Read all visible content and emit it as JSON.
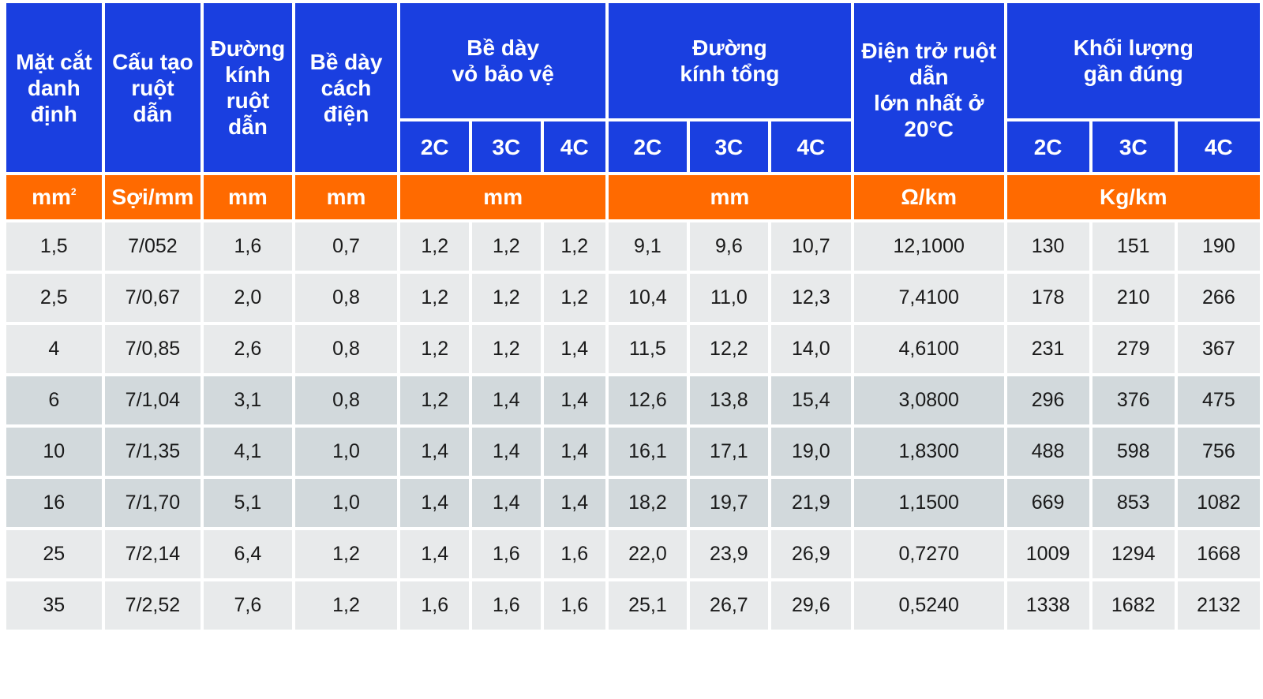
{
  "headers": {
    "cross_section": "Mặt cắt\ndanh\nđịnh",
    "conductor_structure": "Cấu tạo\nruột\ndẫn",
    "conductor_diameter": "Đường\nkính\nruột\ndẫn",
    "insulation_thickness": "Bề dày\ncách\nđiện",
    "sheath_thickness": "Bề dày\nvỏ bảo vệ",
    "overall_diameter": "Đường\nkính tổng",
    "max_resistance": "Điện trở ruột\ndẫn\nlớn nhất ở\n20°C",
    "approx_weight": "Khối lượng\ngần đúng",
    "sub": [
      "2C",
      "3C",
      "4C"
    ]
  },
  "units": {
    "cross_section": "mm",
    "cross_section_sup": "2",
    "conductor_structure": "Sợi/mm",
    "conductor_diameter": "mm",
    "insulation_thickness": "mm",
    "sheath_thickness": "mm",
    "overall_diameter": "mm",
    "max_resistance": "Ω/km",
    "approx_weight": "Kg/km"
  },
  "rows": [
    [
      "1,5",
      "7/052",
      "1,6",
      "0,7",
      "1,2",
      "1,2",
      "1,2",
      "9,1",
      "9,6",
      "10,7",
      "12,1000",
      "130",
      "151",
      "190"
    ],
    [
      "2,5",
      "7/0,67",
      "2,0",
      "0,8",
      "1,2",
      "1,2",
      "1,2",
      "10,4",
      "11,0",
      "12,3",
      "7,4100",
      "178",
      "210",
      "266"
    ],
    [
      "4",
      "7/0,85",
      "2,6",
      "0,8",
      "1,2",
      "1,2",
      "1,4",
      "11,5",
      "12,2",
      "14,0",
      "4,6100",
      "231",
      "279",
      "367"
    ],
    [
      "6",
      "7/1,04",
      "3,1",
      "0,8",
      "1,2",
      "1,4",
      "1,4",
      "12,6",
      "13,8",
      "15,4",
      "3,0800",
      "296",
      "376",
      "475"
    ],
    [
      "10",
      "7/1,35",
      "4,1",
      "1,0",
      "1,4",
      "1,4",
      "1,4",
      "16,1",
      "17,1",
      "19,0",
      "1,8300",
      "488",
      "598",
      "756"
    ],
    [
      "16",
      "7/1,70",
      "5,1",
      "1,0",
      "1,4",
      "1,4",
      "1,4",
      "18,2",
      "19,7",
      "21,9",
      "1,1500",
      "669",
      "853",
      "1082"
    ],
    [
      "25",
      "7/2,14",
      "6,4",
      "1,2",
      "1,4",
      "1,6",
      "1,6",
      "22,0",
      "23,9",
      "26,9",
      "0,7270",
      "1009",
      "1294",
      "1668"
    ],
    [
      "35",
      "7/2,52",
      "7,6",
      "1,2",
      "1,6",
      "1,6",
      "1,6",
      "25,1",
      "26,7",
      "29,6",
      "0,5240",
      "1338",
      "1682",
      "2132"
    ]
  ],
  "colors": {
    "header_blue": "#1a3fe0",
    "unit_orange": "#ff6a00",
    "row_light": "#e8eaeb",
    "row_dark": "#d2d9dc"
  }
}
